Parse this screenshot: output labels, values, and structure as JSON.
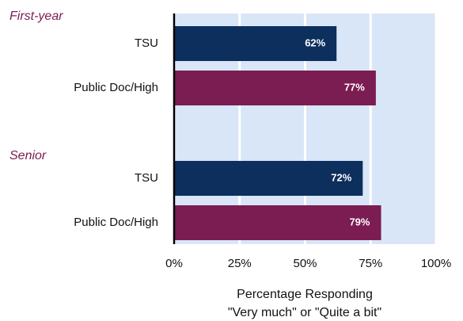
{
  "chart_data": {
    "type": "bar",
    "orientation": "horizontal",
    "groups": [
      {
        "name": "First-year",
        "categories": [
          "TSU",
          "Public Doc/High"
        ],
        "values": [
          62,
          77
        ],
        "value_labels": [
          "62%",
          "77%"
        ],
        "colors": [
          "#0d2f5e",
          "#7b1c52"
        ]
      },
      {
        "name": "Senior",
        "categories": [
          "TSU",
          "Public Doc/High"
        ],
        "values": [
          72,
          79
        ],
        "value_labels": [
          "72%",
          "79%"
        ],
        "colors": [
          "#0d2f5e",
          "#7b1c52"
        ]
      }
    ],
    "xlim": [
      0,
      100
    ],
    "xticks": [
      {
        "value": 0,
        "label": "0%"
      },
      {
        "value": 25,
        "label": "25%"
      },
      {
        "value": 50,
        "label": "50%"
      },
      {
        "value": 75,
        "label": "75%"
      },
      {
        "value": 100,
        "label": "100%"
      }
    ],
    "xlabel": [
      "Percentage Responding",
      "\"Very much\" or \"Quite a bit\""
    ],
    "grid": true
  }
}
